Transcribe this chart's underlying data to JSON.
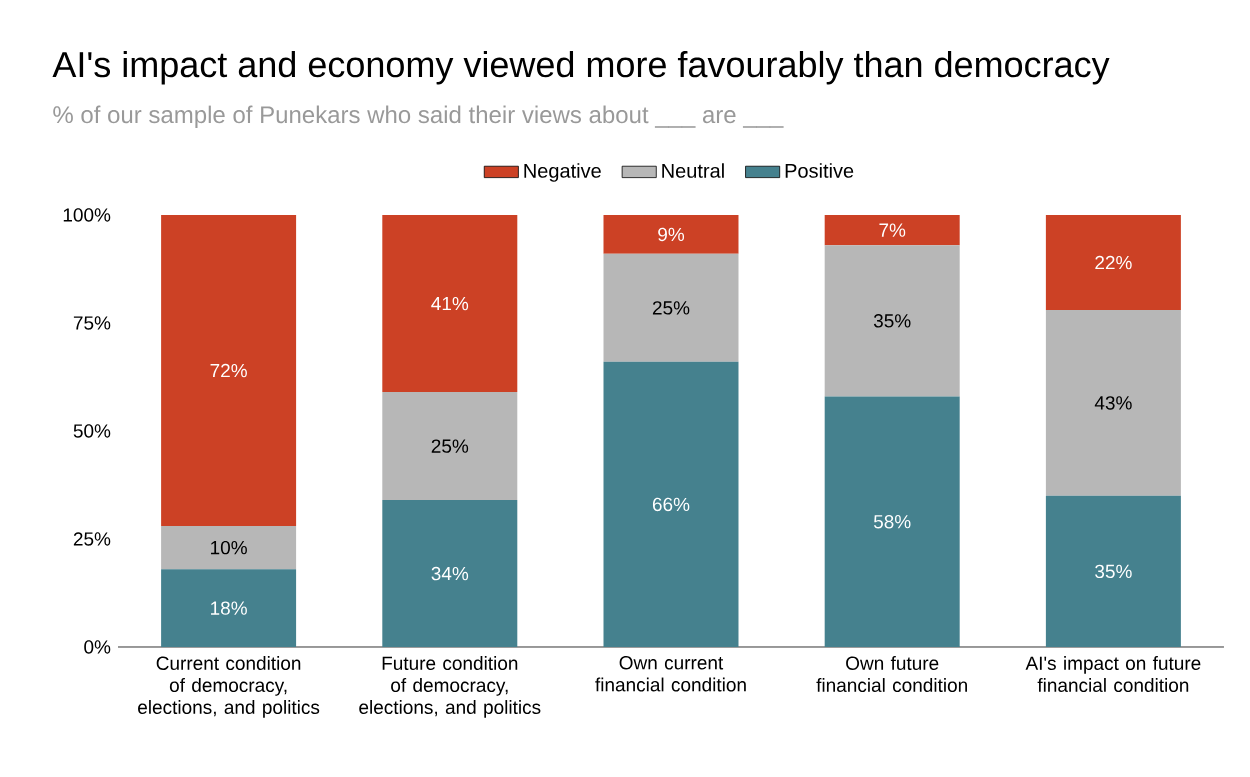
{
  "chart_data": {
    "type": "bar",
    "stacked": true,
    "title": "AI's impact and economy viewed more favourably than democracy",
    "subtitle": "% of our sample of Punekars who said their views about ___ are ___",
    "categories": [
      "Current condition of democracy, elections, and politics",
      "Future condition of democracy, elections, and politics",
      "Own current financial condition",
      "Own future financial condition",
      "AI's impact on future financial condition"
    ],
    "series": [
      {
        "name": "Positive",
        "color": "#45818e",
        "values": [
          18,
          34,
          66,
          58,
          35
        ],
        "value_labels": [
          "18%",
          "34%",
          "66%",
          "58%",
          "35%"
        ]
      },
      {
        "name": "Neutral",
        "color": "#b7b7b7",
        "values": [
          10,
          25,
          25,
          35,
          43
        ],
        "value_labels": [
          "10%",
          "25%",
          "25%",
          "35%",
          "43%"
        ]
      },
      {
        "name": "Negative",
        "color": "#cc4125",
        "values": [
          72,
          41,
          9,
          7,
          22
        ],
        "value_labels": [
          "72%",
          "41%",
          "9%",
          "7%",
          "22%"
        ]
      }
    ],
    "ylim": [
      0,
      100
    ],
    "yticks": [
      {
        "value": 0,
        "label": "0%"
      },
      {
        "value": 25,
        "label": "25%"
      },
      {
        "value": 50,
        "label": "50%"
      },
      {
        "value": 75,
        "label": "75%"
      },
      {
        "value": 100,
        "label": "100%"
      }
    ],
    "grid": false,
    "legend": "top"
  }
}
